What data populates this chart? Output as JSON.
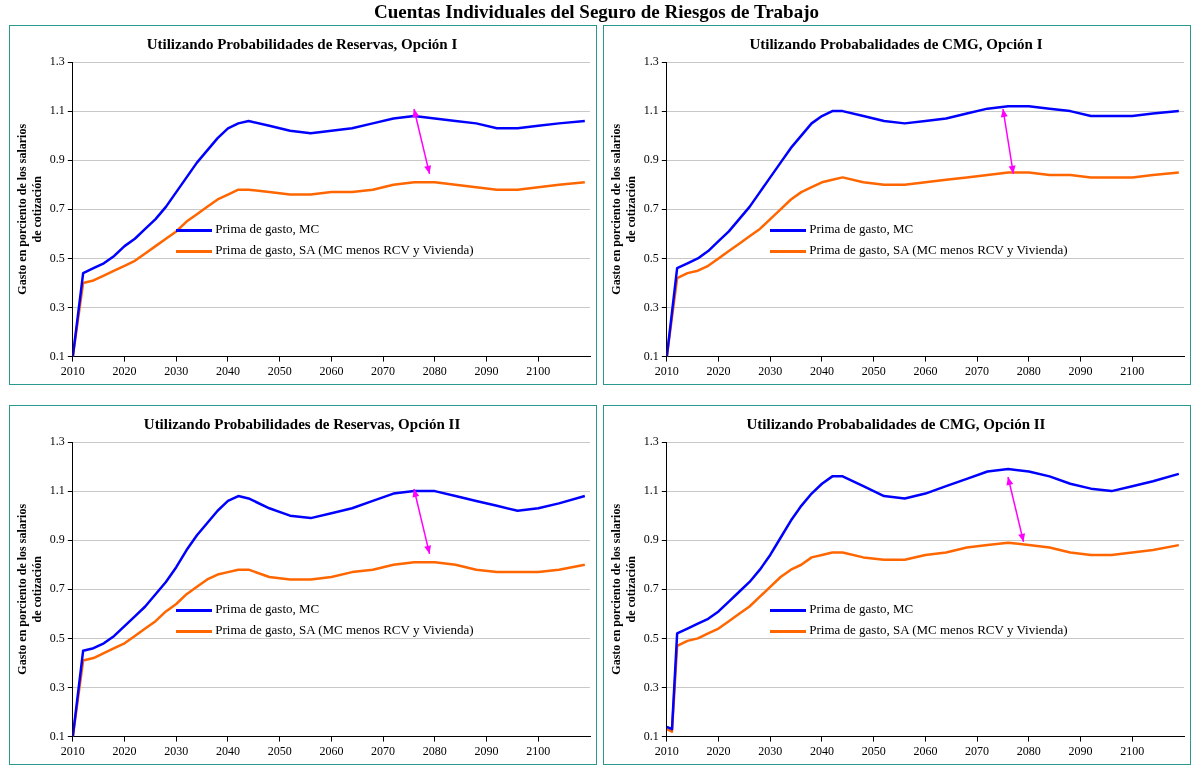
{
  "chart_data": [
    {
      "type": "other",
      "title": "Cuentas Individuales del Seguro de Riesgos de Trabajo"
    },
    {
      "type": "line",
      "title": "Utilizando Probabilidades de Reservas, Opción I",
      "ylabel": "Gasto en porciento de los salarios\nde cotización",
      "legend": "bottom left",
      "grid": "y",
      "marker": "none",
      "line_style": "solid",
      "xlim": [
        2010,
        2110
      ],
      "xticks": [
        2010,
        2020,
        2030,
        2040,
        2050,
        2060,
        2070,
        2080,
        2090,
        2100
      ],
      "ylim": [
        0.1,
        1.3
      ],
      "yticks": [
        0.1,
        0.3,
        0.5,
        0.7,
        0.9,
        1.1,
        1.3
      ],
      "x": [
        2010,
        2012,
        2014,
        2016,
        2018,
        2020,
        2022,
        2024,
        2026,
        2028,
        2030,
        2032,
        2034,
        2036,
        2038,
        2040,
        2042,
        2044,
        2048,
        2052,
        2056,
        2060,
        2064,
        2068,
        2072,
        2076,
        2080,
        2084,
        2088,
        2092,
        2096,
        2100,
        2104,
        2109
      ],
      "series": [
        {
          "name": "Prima de gasto, MC",
          "color": "#0000ff",
          "values": [
            0.1,
            0.44,
            0.46,
            0.48,
            0.51,
            0.55,
            0.58,
            0.62,
            0.66,
            0.71,
            0.77,
            0.83,
            0.89,
            0.94,
            0.99,
            1.03,
            1.05,
            1.06,
            1.04,
            1.02,
            1.01,
            1.02,
            1.03,
            1.05,
            1.07,
            1.08,
            1.07,
            1.06,
            1.05,
            1.03,
            1.03,
            1.04,
            1.05,
            1.06
          ]
        },
        {
          "name": "Prima de gasto, SA (MC menos RCV y  Vivienda)",
          "color": "#ff6600",
          "values": [
            0.1,
            0.4,
            0.41,
            0.43,
            0.45,
            0.47,
            0.49,
            0.52,
            0.55,
            0.58,
            0.61,
            0.65,
            0.68,
            0.71,
            0.74,
            0.76,
            0.78,
            0.78,
            0.77,
            0.76,
            0.76,
            0.77,
            0.77,
            0.78,
            0.8,
            0.81,
            0.81,
            0.8,
            0.79,
            0.78,
            0.78,
            0.79,
            0.8,
            0.81
          ]
        }
      ]
    },
    {
      "type": "line",
      "title": "Utilizando Probabalidades de CMG, Opción I",
      "ylabel": "Gasto en porciento de los salarios\nde cotización",
      "legend": "bottom left",
      "grid": "y",
      "marker": "none",
      "line_style": "solid",
      "xlim": [
        2010,
        2110
      ],
      "xticks": [
        2010,
        2020,
        2030,
        2040,
        2050,
        2060,
        2070,
        2080,
        2090,
        2100
      ],
      "ylim": [
        0.1,
        1.3
      ],
      "yticks": [
        0.1,
        0.3,
        0.5,
        0.7,
        0.9,
        1.1,
        1.3
      ],
      "x": [
        2010,
        2012,
        2014,
        2016,
        2018,
        2020,
        2022,
        2024,
        2026,
        2028,
        2030,
        2032,
        2034,
        2036,
        2038,
        2040,
        2042,
        2044,
        2048,
        2052,
        2056,
        2060,
        2064,
        2068,
        2072,
        2076,
        2080,
        2084,
        2088,
        2092,
        2096,
        2100,
        2104,
        2109
      ],
      "series": [
        {
          "name": "Prima de gasto, MC",
          "color": "#0000ff",
          "values": [
            0.1,
            0.46,
            0.48,
            0.5,
            0.53,
            0.57,
            0.61,
            0.66,
            0.71,
            0.77,
            0.83,
            0.89,
            0.95,
            1.0,
            1.05,
            1.08,
            1.1,
            1.1,
            1.08,
            1.06,
            1.05,
            1.06,
            1.07,
            1.09,
            1.11,
            1.12,
            1.12,
            1.11,
            1.1,
            1.08,
            1.08,
            1.08,
            1.09,
            1.1
          ]
        },
        {
          "name": "Prima de gasto, SA (MC menos RCV y  Vivienda)",
          "color": "#ff6600",
          "values": [
            0.1,
            0.42,
            0.44,
            0.45,
            0.47,
            0.5,
            0.53,
            0.56,
            0.59,
            0.62,
            0.66,
            0.7,
            0.74,
            0.77,
            0.79,
            0.81,
            0.82,
            0.83,
            0.81,
            0.8,
            0.8,
            0.81,
            0.82,
            0.83,
            0.84,
            0.85,
            0.85,
            0.84,
            0.84,
            0.83,
            0.83,
            0.83,
            0.84,
            0.85
          ]
        }
      ]
    },
    {
      "type": "line",
      "title": "Utilizando Probabilidades de Reservas, Opción II",
      "ylabel": "Gasto en porciento de los salarios\nde cotización",
      "legend": "bottom left",
      "grid": "y",
      "marker": "none",
      "line_style": "solid",
      "xlim": [
        2010,
        2110
      ],
      "xticks": [
        2010,
        2020,
        2030,
        2040,
        2050,
        2060,
        2070,
        2080,
        2090,
        2100
      ],
      "ylim": [
        0.1,
        1.3
      ],
      "yticks": [
        0.1,
        0.3,
        0.5,
        0.7,
        0.9,
        1.1,
        1.3
      ],
      "x": [
        2010,
        2012,
        2014,
        2016,
        2018,
        2020,
        2022,
        2024,
        2026,
        2028,
        2030,
        2032,
        2034,
        2036,
        2038,
        2040,
        2042,
        2044,
        2048,
        2052,
        2056,
        2060,
        2064,
        2068,
        2072,
        2076,
        2080,
        2084,
        2088,
        2092,
        2096,
        2100,
        2104,
        2109
      ],
      "series": [
        {
          "name": "Prima de gasto, MC",
          "color": "#0000ff",
          "values": [
            0.1,
            0.45,
            0.46,
            0.48,
            0.51,
            0.55,
            0.59,
            0.63,
            0.68,
            0.73,
            0.79,
            0.86,
            0.92,
            0.97,
            1.02,
            1.06,
            1.08,
            1.07,
            1.03,
            1.0,
            0.99,
            1.01,
            1.03,
            1.06,
            1.09,
            1.1,
            1.1,
            1.08,
            1.06,
            1.04,
            1.02,
            1.03,
            1.05,
            1.08
          ]
        },
        {
          "name": "Prima de gasto, SA (MC menos RCV y  Vivienda)",
          "color": "#ff6600",
          "values": [
            0.1,
            0.41,
            0.42,
            0.44,
            0.46,
            0.48,
            0.51,
            0.54,
            0.57,
            0.61,
            0.64,
            0.68,
            0.71,
            0.74,
            0.76,
            0.77,
            0.78,
            0.78,
            0.75,
            0.74,
            0.74,
            0.75,
            0.77,
            0.78,
            0.8,
            0.81,
            0.81,
            0.8,
            0.78,
            0.77,
            0.77,
            0.77,
            0.78,
            0.8
          ]
        }
      ]
    },
    {
      "type": "line",
      "title": "Utilizando Probabalidades de CMG, Opción II",
      "ylabel": "Gasto en porciento de los salarios\nde cotización",
      "legend": "bottom left",
      "grid": "y",
      "marker": "none",
      "line_style": "solid",
      "xlim": [
        2010,
        2110
      ],
      "xticks": [
        2010,
        2020,
        2030,
        2040,
        2050,
        2060,
        2070,
        2080,
        2090,
        2100
      ],
      "ylim": [
        0.1,
        1.3
      ],
      "yticks": [
        0.1,
        0.3,
        0.5,
        0.7,
        0.9,
        1.1,
        1.3
      ],
      "x": [
        2010,
        2011,
        2012,
        2014,
        2016,
        2018,
        2020,
        2022,
        2024,
        2026,
        2028,
        2030,
        2032,
        2034,
        2036,
        2038,
        2040,
        2042,
        2044,
        2048,
        2052,
        2056,
        2060,
        2064,
        2068,
        2072,
        2076,
        2080,
        2084,
        2088,
        2092,
        2096,
        2100,
        2104,
        2109
      ],
      "series": [
        {
          "name": "Prima de gasto, MC",
          "color": "#0000ff",
          "values": [
            0.14,
            0.13,
            0.52,
            0.54,
            0.56,
            0.58,
            0.61,
            0.65,
            0.69,
            0.73,
            0.78,
            0.84,
            0.91,
            0.98,
            1.04,
            1.09,
            1.13,
            1.16,
            1.16,
            1.12,
            1.08,
            1.07,
            1.09,
            1.12,
            1.15,
            1.18,
            1.19,
            1.18,
            1.16,
            1.13,
            1.11,
            1.1,
            1.12,
            1.14,
            1.17
          ]
        },
        {
          "name": "Prima de gasto, SA (MC menos RCV y  Vivienda)",
          "color": "#ff6600",
          "values": [
            0.13,
            0.12,
            0.47,
            0.49,
            0.5,
            0.52,
            0.54,
            0.57,
            0.6,
            0.63,
            0.67,
            0.71,
            0.75,
            0.78,
            0.8,
            0.83,
            0.84,
            0.85,
            0.85,
            0.83,
            0.82,
            0.82,
            0.84,
            0.85,
            0.87,
            0.88,
            0.89,
            0.88,
            0.87,
            0.85,
            0.84,
            0.84,
            0.85,
            0.86,
            0.88
          ]
        }
      ]
    }
  ]
}
